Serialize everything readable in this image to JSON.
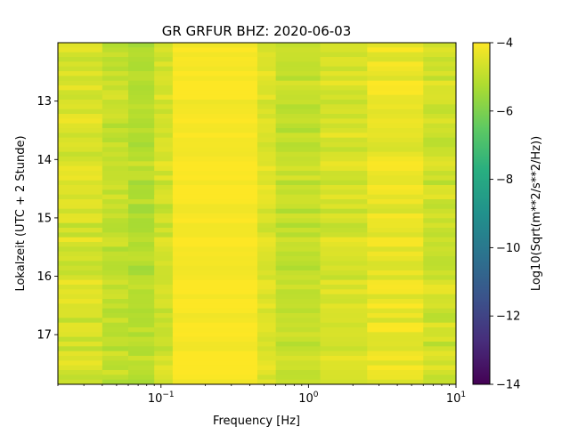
{
  "chart_data": {
    "type": "heatmap",
    "title": "GR GRFUR  BHZ: 2020-06-03",
    "xlabel": "Frequency [Hz]",
    "ylabel": "Lokalzeit (UTC + 2 Stunde)",
    "colorbar_label": "Log10(Sqrt(m**2/s**2/Hz))",
    "x_scale": "log",
    "xlim": [
      0.02,
      10
    ],
    "ylim": [
      17.85,
      12.0
    ],
    "x_ticks": [
      {
        "value": 0.1,
        "base": "10",
        "exp": "−1"
      },
      {
        "value": 1,
        "base": "10",
        "exp": "0"
      },
      {
        "value": 10,
        "base": "10",
        "exp": "1"
      }
    ],
    "y_ticks": [
      13,
      14,
      15,
      16,
      17
    ],
    "colorbar_range": [
      -14,
      -4
    ],
    "colorbar_ticks": [
      -4,
      -6,
      -8,
      -10,
      -12,
      -14
    ],
    "colormap": "viridis",
    "bands": [
      {
        "f_from": 0.02,
        "f_to": 0.04,
        "value": -4.6,
        "row_jitter": 0.35
      },
      {
        "f_from": 0.04,
        "f_to": 0.06,
        "value": -4.9,
        "row_jitter": 0.3
      },
      {
        "f_from": 0.06,
        "f_to": 0.09,
        "value": -5.1,
        "row_jitter": 0.3
      },
      {
        "f_from": 0.09,
        "f_to": 0.12,
        "value": -4.7,
        "row_jitter": 0.3
      },
      {
        "f_from": 0.12,
        "f_to": 0.45,
        "value": -4.05,
        "row_jitter": 0.05
      },
      {
        "f_from": 0.45,
        "f_to": 0.6,
        "value": -4.5,
        "row_jitter": 0.2
      },
      {
        "f_from": 0.6,
        "f_to": 1.2,
        "value": -4.9,
        "row_jitter": 0.25
      },
      {
        "f_from": 1.2,
        "f_to": 2.5,
        "value": -4.6,
        "row_jitter": 0.25
      },
      {
        "f_from": 2.5,
        "f_to": 6,
        "value": -4.3,
        "row_jitter": 0.25
      },
      {
        "f_from": 6,
        "f_to": 10,
        "value": -4.7,
        "row_jitter": 0.3
      }
    ]
  }
}
